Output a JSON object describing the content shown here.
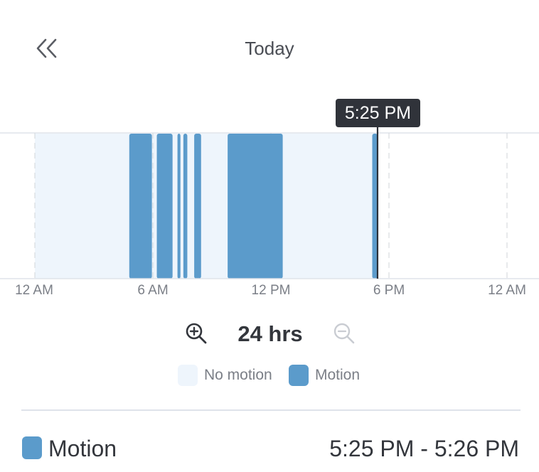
{
  "header": {
    "back_icon": "double-chevron-left-icon",
    "title": "Today"
  },
  "timeline": {
    "axis_range_hours": [
      0,
      24
    ],
    "cursor_label": "5:25 PM",
    "cursor_hour": 17.42,
    "no_motion_span_hours": [
      0,
      17.42
    ],
    "motion_segments_hours": [
      [
        4.8,
        5.95
      ],
      [
        6.2,
        7.0
      ],
      [
        7.25,
        7.4
      ],
      [
        7.55,
        7.75
      ],
      [
        8.1,
        8.45
      ],
      [
        9.8,
        12.6
      ],
      [
        17.15,
        17.42
      ]
    ],
    "ticks": [
      {
        "label": "12 AM",
        "hour": 0
      },
      {
        "label": "6 AM",
        "hour": 6
      },
      {
        "label": "12 PM",
        "hour": 12
      },
      {
        "label": "6 PM",
        "hour": 18
      },
      {
        "label": "12 AM",
        "hour": 24
      }
    ],
    "colors": {
      "no_motion": "#eef5fc",
      "motion": "#5b9bcb",
      "cursor": "#2d3038",
      "gridline": "#d8dbe0",
      "baseline": "#dfe3ea"
    }
  },
  "zoom": {
    "zoom_in_icon": "zoom-in-icon",
    "label": "24 hrs",
    "zoom_out_icon": "zoom-out-icon"
  },
  "legend": {
    "no_motion_label": "No motion",
    "motion_label": "Motion"
  },
  "event": {
    "type": "Motion",
    "time_range": "5:25 PM - 5:26 PM"
  }
}
